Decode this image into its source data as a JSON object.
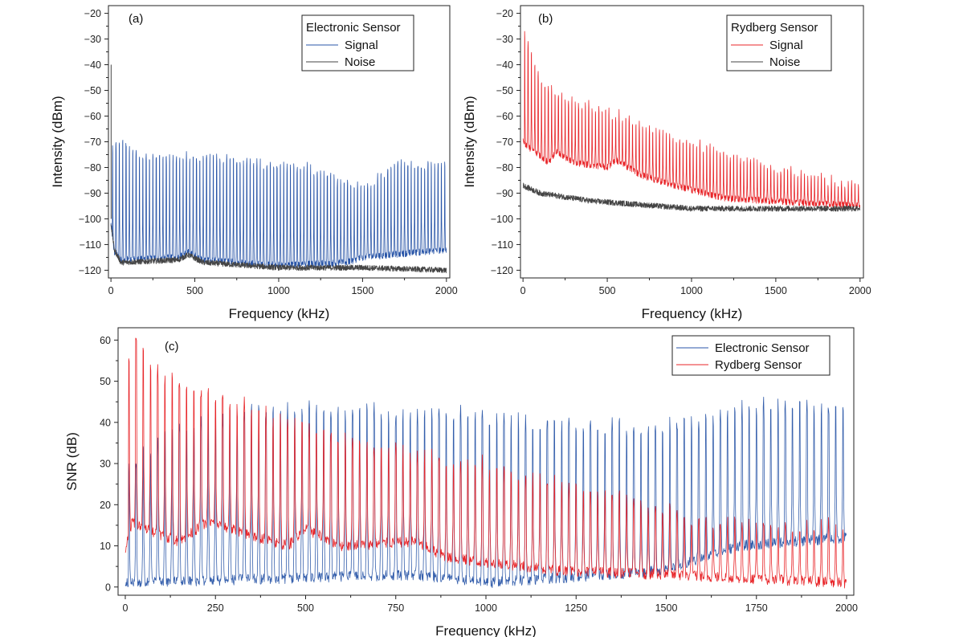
{
  "chart_data": [
    {
      "id": "a",
      "type": "line",
      "panel_label": "(a)",
      "xlabel": "Frequency (kHz)",
      "ylabel": "Intensity (dBm)",
      "xlim": [
        -15,
        2020
      ],
      "ylim": [
        -123,
        -17
      ],
      "xticks": [
        0,
        500,
        1000,
        1500,
        2000
      ],
      "xtick_labels": [
        "0",
        "500",
        "1000",
        "1500",
        "2000"
      ],
      "yticks": [
        -20,
        -30,
        -40,
        -50,
        -60,
        -70,
        -80,
        -90,
        -100,
        -110,
        -120
      ],
      "ytick_labels": [
        "−20",
        "−30",
        "−40",
        "−50",
        "−60",
        "−70",
        "−80",
        "−90",
        "−100",
        "−110",
        "−120"
      ],
      "legend_title": "Electronic Sensor",
      "legend_position": "top-right",
      "series": [
        {
          "name": "Signal",
          "color": "#2a56a8",
          "style": "spikes",
          "spike_spacing_khz": 20,
          "start_khz": 10,
          "end_khz": 2000,
          "peak_dbm_anchors": [
            [
              10,
              -72
            ],
            [
              50,
              -68
            ],
            [
              200,
              -75
            ],
            [
              500,
              -75
            ],
            [
              800,
              -77
            ],
            [
              1200,
              -80
            ],
            [
              1500,
              -88
            ],
            [
              1700,
              -78
            ],
            [
              2000,
              -78
            ]
          ],
          "floor_dbm_anchors": [
            [
              0,
              -102
            ],
            [
              20,
              -113
            ],
            [
              60,
              -116
            ],
            [
              400,
              -115
            ],
            [
              460,
              -113
            ],
            [
              550,
              -116
            ],
            [
              1000,
              -118
            ],
            [
              1400,
              -117
            ],
            [
              1500,
              -115
            ],
            [
              2000,
              -112
            ]
          ]
        },
        {
          "name": "Noise",
          "color": "#444444",
          "style": "noise",
          "floor_dbm_anchors": [
            [
              0,
              -102
            ],
            [
              20,
              -112
            ],
            [
              60,
              -117
            ],
            [
              400,
              -116
            ],
            [
              460,
              -114
            ],
            [
              550,
              -117
            ],
            [
              1000,
              -119
            ],
            [
              1500,
              -119
            ],
            [
              2000,
              -120
            ]
          ]
        }
      ],
      "annotations": [
        {
          "x_khz": 0,
          "peak_dbm": -40
        }
      ]
    },
    {
      "id": "b",
      "type": "line",
      "panel_label": "(b)",
      "xlabel": "Frequency (kHz)",
      "ylabel": "Intensity (dBm)",
      "xlim": [
        -15,
        2020
      ],
      "ylim": [
        -123,
        -17
      ],
      "xticks": [
        0,
        500,
        1000,
        1500,
        2000
      ],
      "xtick_labels": [
        "0",
        "500",
        "1000",
        "1500",
        "2000"
      ],
      "yticks": [
        -20,
        -30,
        -40,
        -50,
        -60,
        -70,
        -80,
        -90,
        -100,
        -110,
        -120
      ],
      "ytick_labels": [
        "−20",
        "−30",
        "−40",
        "−50",
        "−60",
        "−70",
        "−80",
        "−90",
        "−100",
        "−110",
        "−120"
      ],
      "legend_title": "Rydberg Sensor",
      "legend_position": "top-right",
      "series": [
        {
          "name": "Signal",
          "color": "#e8262a",
          "style": "spikes",
          "spike_spacing_khz": 20,
          "start_khz": 10,
          "end_khz": 2000,
          "peak_dbm_anchors": [
            [
              10,
              -27
            ],
            [
              100,
              -45
            ],
            [
              300,
              -54
            ],
            [
              600,
              -60
            ],
            [
              1000,
              -70
            ],
            [
              1500,
              -80
            ],
            [
              2000,
              -87
            ]
          ],
          "floor_dbm_anchors": [
            [
              0,
              -70
            ],
            [
              50,
              -73
            ],
            [
              150,
              -78
            ],
            [
              200,
              -74
            ],
            [
              300,
              -78
            ],
            [
              500,
              -80
            ],
            [
              550,
              -77
            ],
            [
              700,
              -83
            ],
            [
              900,
              -87
            ],
            [
              1200,
              -92
            ],
            [
              2000,
              -95
            ]
          ]
        },
        {
          "name": "Noise",
          "color": "#444444",
          "style": "noise",
          "floor_dbm_anchors": [
            [
              0,
              -87
            ],
            [
              100,
              -90
            ],
            [
              400,
              -93
            ],
            [
              1000,
              -96
            ],
            [
              2000,
              -96
            ]
          ]
        }
      ]
    },
    {
      "id": "c",
      "type": "line",
      "panel_label": "(c)",
      "xlabel": "Frequency (kHz)",
      "ylabel": "SNR (dB)",
      "xlim": [
        -20,
        2020
      ],
      "ylim": [
        -2,
        63
      ],
      "xticks": [
        0,
        250,
        500,
        750,
        1000,
        1250,
        1500,
        1750,
        2000
      ],
      "xtick_labels": [
        "0",
        "250",
        "500",
        "750",
        "1000",
        "1250",
        "1500",
        "1750",
        "2000"
      ],
      "yticks": [
        0,
        10,
        20,
        30,
        40,
        50,
        60
      ],
      "ytick_labels": [
        "0",
        "10",
        "20",
        "30",
        "40",
        "50",
        "60"
      ],
      "legend_position": "top-right",
      "series": [
        {
          "name": "Electronic Sensor",
          "color": "#2a56a8",
          "style": "spikes",
          "spike_spacing_khz": 20,
          "start_khz": 10,
          "end_khz": 2000,
          "peak_db_anchors": [
            [
              10,
              30
            ],
            [
              100,
              37
            ],
            [
              300,
              43
            ],
            [
              500,
              44
            ],
            [
              1000,
              42
            ],
            [
              1250,
              40
            ],
            [
              1500,
              40
            ],
            [
              1800,
              45
            ],
            [
              2000,
              44
            ]
          ],
          "floor_db_anchors": [
            [
              0,
              1
            ],
            [
              400,
              2
            ],
            [
              800,
              3
            ],
            [
              1000,
              1
            ],
            [
              1500,
              4
            ],
            [
              1700,
              10
            ],
            [
              2000,
              12
            ]
          ]
        },
        {
          "name": "Rydberg Sensor",
          "color": "#e8262a",
          "style": "spikes",
          "spike_spacing_khz": 20,
          "start_khz": 10,
          "end_khz": 2000,
          "peak_db_anchors": [
            [
              10,
              56
            ],
            [
              30,
              62
            ],
            [
              100,
              52
            ],
            [
              250,
              47
            ],
            [
              400,
              42
            ],
            [
              700,
              35
            ],
            [
              1000,
              30
            ],
            [
              1300,
              24
            ],
            [
              1600,
              17
            ],
            [
              2000,
              15
            ]
          ],
          "floor_db_anchors": [
            [
              0,
              9
            ],
            [
              20,
              16
            ],
            [
              60,
              14
            ],
            [
              150,
              11
            ],
            [
              230,
              16
            ],
            [
              330,
              13
            ],
            [
              450,
              10
            ],
            [
              500,
              14
            ],
            [
              600,
              10
            ],
            [
              800,
              11
            ],
            [
              900,
              7
            ],
            [
              1200,
              4
            ],
            [
              1500,
              3
            ],
            [
              2000,
              1
            ]
          ]
        }
      ]
    }
  ]
}
